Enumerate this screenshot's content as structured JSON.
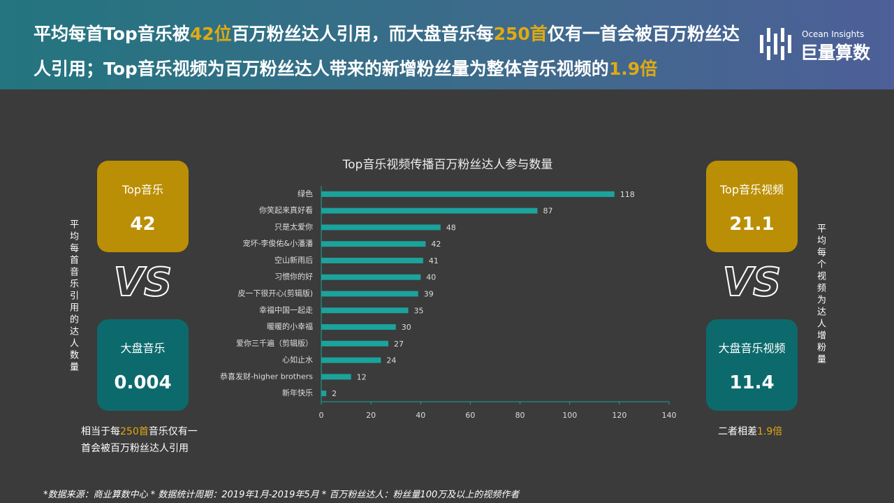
{
  "header": {
    "title": [
      {
        "text": "平均每首Top音乐被"
      },
      {
        "text": "42位",
        "highlight": true
      },
      {
        "text": "百万粉丝达人引用，而大盘音乐每"
      },
      {
        "text": "250首",
        "highlight": true
      },
      {
        "text": "仅有一首会被百万粉丝达人引用；Top音乐视频为百万粉丝达人带来的新增粉丝量为整体音乐视频的"
      },
      {
        "text": "1.9倍",
        "highlight": true
      }
    ],
    "logo": {
      "subtitle": "Ocean Insights",
      "name": "巨量算数"
    }
  },
  "vs": "VS",
  "left": {
    "axis_label": "平均每首音乐引用的达人数量",
    "top": {
      "label": "Top音乐",
      "value": 42
    },
    "bottom": {
      "label": "大盘音乐",
      "value": 0.004
    },
    "note": [
      {
        "text": "相当于每"
      },
      {
        "text": "250首",
        "highlight": true
      },
      {
        "text": "音乐仅有一首会被百万粉丝达人引用"
      }
    ]
  },
  "right": {
    "axis_label": "平均每个视频为达人增粉量",
    "top": {
      "label": "Top音乐视频",
      "value": 21.1
    },
    "bottom": {
      "label": "大盘音乐视频",
      "value": 11.4
    },
    "note": [
      {
        "text": "二者相差"
      },
      {
        "text": "1.9倍",
        "highlight": true
      }
    ]
  },
  "chart_data": {
    "type": "bar",
    "orientation": "horizontal",
    "title": "Top音乐视频传播百万粉丝达人参与数量",
    "categories": [
      "绿色",
      "你笑起来真好看",
      "只是太爱你",
      "宠坏-李俊佑&小潘潘",
      "空山新雨后",
      "习惯你的好",
      "皮一下很开心(剪辑版)",
      "幸福中国一起走",
      "暖暖的小幸福",
      "爱你三千遍（剪辑版）",
      "心如止水",
      "恭喜发财-higher brothers",
      "新年快乐"
    ],
    "values": [
      118,
      87,
      48,
      42,
      41,
      40,
      39,
      35,
      30,
      27,
      24,
      12,
      2
    ],
    "color": "#1ba39c",
    "xlim": [
      0,
      140
    ],
    "xticks": [
      0,
      20,
      40,
      60,
      80,
      100,
      120,
      140
    ],
    "grid": false
  },
  "footer": "*数据来源：商业算数中心 * 数据统计周期：2019年1月-2019年5月 * 百万粉丝达人：粉丝量100万及以上的视频作者"
}
